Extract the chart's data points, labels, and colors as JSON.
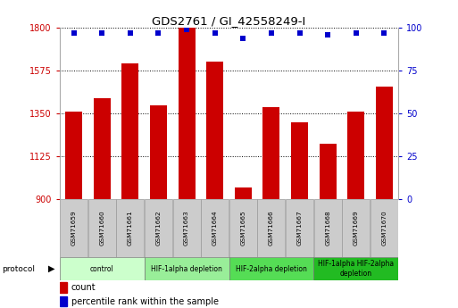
{
  "title": "GDS2761 / GI_42558249-I",
  "samples": [
    "GSM71659",
    "GSM71660",
    "GSM71661",
    "GSM71662",
    "GSM71663",
    "GSM71664",
    "GSM71665",
    "GSM71666",
    "GSM71667",
    "GSM71668",
    "GSM71669",
    "GSM71670"
  ],
  "counts": [
    1360,
    1430,
    1610,
    1390,
    1800,
    1620,
    960,
    1380,
    1300,
    1190,
    1360,
    1490
  ],
  "percentiles": [
    97,
    97,
    97,
    97,
    99,
    97,
    94,
    97,
    97,
    96,
    97,
    97
  ],
  "ylim_left": [
    900,
    1800
  ],
  "ylim_right": [
    0,
    100
  ],
  "yticks_left": [
    900,
    1125,
    1350,
    1575,
    1800
  ],
  "yticks_right": [
    0,
    25,
    50,
    75,
    100
  ],
  "bar_color": "#cc0000",
  "dot_color": "#0000cc",
  "protocols": [
    {
      "label": "control",
      "start": 0,
      "end": 3,
      "color": "#ccffcc"
    },
    {
      "label": "HIF-1alpha depletion",
      "start": 3,
      "end": 6,
      "color": "#99ee99"
    },
    {
      "label": "HIF-2alpha depletion",
      "start": 6,
      "end": 9,
      "color": "#55dd55"
    },
    {
      "label": "HIF-1alpha HIF-2alpha\ndepletion",
      "start": 9,
      "end": 12,
      "color": "#22bb22"
    }
  ],
  "protocol_label": "protocol",
  "legend_count_label": "count",
  "legend_percentile_label": "percentile rank within the sample",
  "sample_box_color": "#cccccc",
  "sample_box_edge": "#999999"
}
